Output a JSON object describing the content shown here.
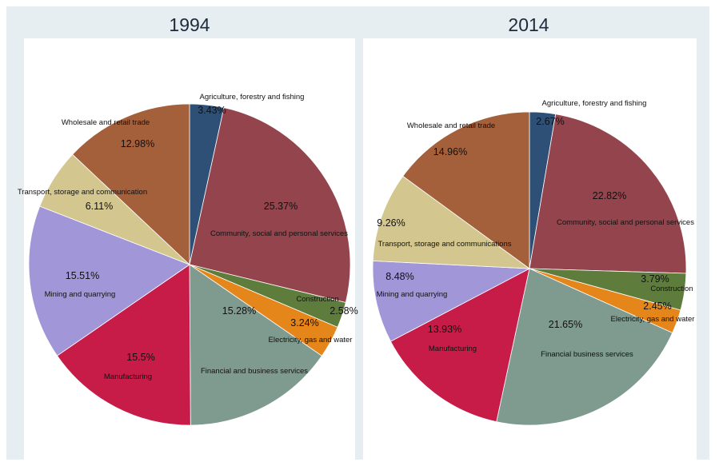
{
  "chart_data": [
    {
      "type": "pie",
      "title": "1994",
      "start_angle_deg": 0,
      "direction": "clockwise",
      "slices": [
        {
          "label": "Agriculture, forestry and fishing",
          "value": 3.43,
          "value_label": "3.43%",
          "color": "#2e5077"
        },
        {
          "label": "Community, social and personal services",
          "value": 25.37,
          "value_label": "25.37%",
          "color": "#93444c"
        },
        {
          "label": "Construction",
          "value": 2.58,
          "value_label": "2.58%",
          "color": "#5e7d3c"
        },
        {
          "label": "Electricity, gas and water",
          "value": 3.24,
          "value_label": "3.24%",
          "color": "#e5861a"
        },
        {
          "label": "Financial and business services",
          "value": 15.28,
          "value_label": "15.28%",
          "color": "#7f9a8f"
        },
        {
          "label": "Manufacturing",
          "value": 15.5,
          "value_label": "15.5%",
          "color": "#c71b48"
        },
        {
          "label": "Mining and quarrying",
          "value": 15.51,
          "value_label": "15.51%",
          "color": "#a196d8"
        },
        {
          "label": "Transport, storage and communication",
          "value": 6.11,
          "value_label": "6.11%",
          "color": "#d3c78f"
        },
        {
          "label": "Wholesale and retail trade",
          "value": 12.98,
          "value_label": "12.98%",
          "color": "#a45f3b"
        }
      ]
    },
    {
      "type": "pie",
      "title": "2014",
      "start_angle_deg": 0,
      "direction": "clockwise",
      "slices": [
        {
          "label": "Agriculture, forestry and fishing",
          "value": 2.67,
          "value_label": "2.67%",
          "color": "#2e5077"
        },
        {
          "label": "Community, social and personal services",
          "value": 22.82,
          "value_label": "22.82%",
          "color": "#93444c"
        },
        {
          "label": "Construction",
          "value": 3.79,
          "value_label": "3.79%",
          "color": "#5e7d3c"
        },
        {
          "label": "Electricity, gas and water",
          "value": 2.45,
          "value_label": "2.45%",
          "color": "#e5861a"
        },
        {
          "label": "Financial business services",
          "value": 21.65,
          "value_label": "21.65%",
          "color": "#7f9a8f"
        },
        {
          "label": "Manufacturing",
          "value": 13.93,
          "value_label": "13.93%",
          "color": "#c71b48"
        },
        {
          "label": "Mining and quarrying",
          "value": 8.48,
          "value_label": "8.48%",
          "color": "#a196d8"
        },
        {
          "label": "Transport, storage and communications",
          "value": 9.26,
          "value_label": "9.26%",
          "color": "#d3c78f"
        },
        {
          "label": "Wholesale and retail trade",
          "value": 14.96,
          "value_label": "14.96%",
          "color": "#a45f3b"
        }
      ]
    }
  ]
}
